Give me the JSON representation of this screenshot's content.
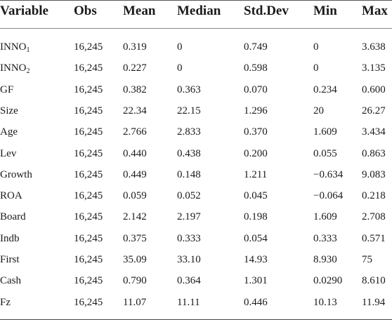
{
  "headers": [
    "Variable",
    "Obs",
    "Mean",
    "Median",
    "Std.Dev",
    "Min",
    "Max"
  ],
  "rows": [
    {
      "var": "INNO",
      "sub": "1",
      "cells": [
        "16,245",
        "0.319",
        "0",
        "0.749",
        "0",
        "3.638"
      ]
    },
    {
      "var": "INNO",
      "sub": "2",
      "cells": [
        "16,245",
        "0.227",
        "0",
        "0.598",
        "0",
        "3.135"
      ]
    },
    {
      "var": "GF",
      "sub": "",
      "cells": [
        "16,245",
        "0.382",
        "0.363",
        "0.070",
        "0.234",
        "0.600"
      ]
    },
    {
      "var": "Size",
      "sub": "",
      "cells": [
        "16,245",
        "22.34",
        "22.15",
        "1.296",
        "20",
        "26.27"
      ]
    },
    {
      "var": "Age",
      "sub": "",
      "cells": [
        "16,245",
        "2.766",
        "2.833",
        "0.370",
        "1.609",
        "3.434"
      ]
    },
    {
      "var": "Lev",
      "sub": "",
      "cells": [
        "16,245",
        "0.440",
        "0.438",
        "0.200",
        "0.055",
        "0.863"
      ]
    },
    {
      "var": "Growth",
      "sub": "",
      "cells": [
        "16,245",
        "0.449",
        "0.148",
        "1.211",
        "−0.634",
        "9.083"
      ]
    },
    {
      "var": "ROA",
      "sub": "",
      "cells": [
        "16,245",
        "0.059",
        "0.052",
        "0.045",
        "−0.064",
        "0.218"
      ]
    },
    {
      "var": "Board",
      "sub": "",
      "cells": [
        "16,245",
        "2.142",
        "2.197",
        "0.198",
        "1.609",
        "2.708"
      ]
    },
    {
      "var": "Indb",
      "sub": "",
      "cells": [
        "16,245",
        "0.375",
        "0.333",
        "0.054",
        "0.333",
        "0.571"
      ]
    },
    {
      "var": "First",
      "sub": "",
      "cells": [
        "16,245",
        "35.09",
        "33.10",
        "14.93",
        "8.930",
        "75"
      ]
    },
    {
      "var": "Cash",
      "sub": "",
      "cells": [
        "16,245",
        "0.790",
        "0.364",
        "1.301",
        "0.0290",
        "8.610"
      ]
    },
    {
      "var": "Fz",
      "sub": "",
      "cells": [
        "16,245",
        "11.07",
        "11.11",
        "0.446",
        "10.13",
        "11.94"
      ]
    }
  ]
}
